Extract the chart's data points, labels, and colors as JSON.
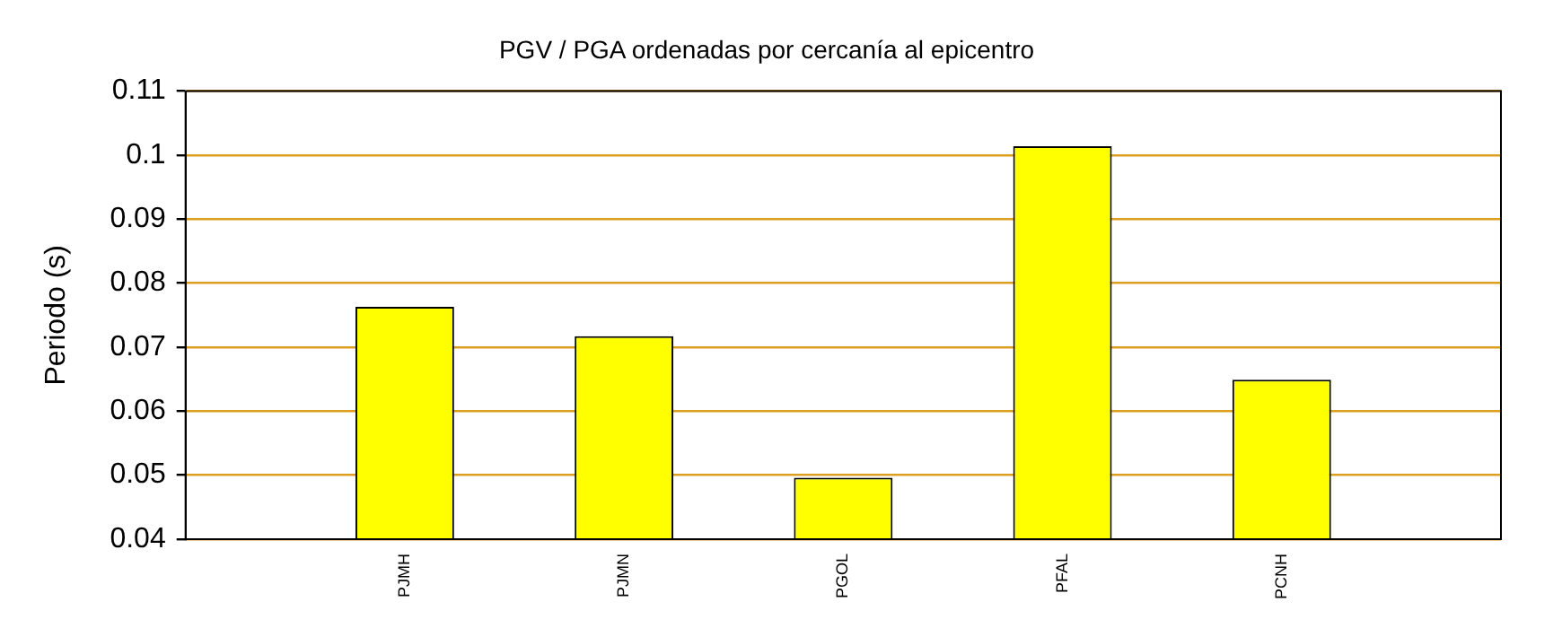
{
  "chart_data": {
    "type": "bar",
    "title": "PGV / PGA ordenadas por cercanía al epicentro",
    "ylabel": "Periodo (s)",
    "categories": [
      null,
      "PJMH",
      "PJMN",
      "PGOL",
      "PFAL",
      "PCNH",
      null
    ],
    "values": [
      null,
      0.0763,
      0.0717,
      0.0496,
      0.1014,
      0.0649,
      null
    ],
    "color": "#ffff00",
    "ylim": [
      0.04,
      0.11
    ],
    "yticks": [
      0.04,
      0.05,
      0.06,
      0.07,
      0.08,
      0.09,
      0.1,
      0.11
    ],
    "grid": "y",
    "legend": false
  }
}
